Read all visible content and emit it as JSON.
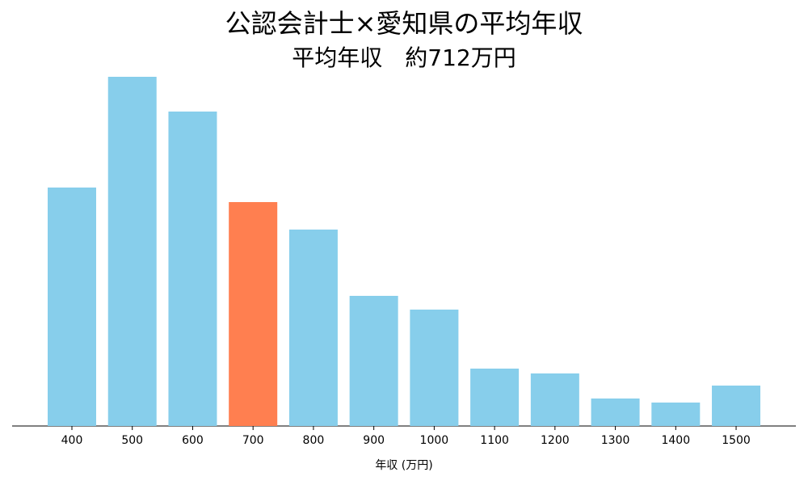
{
  "chart_data": {
    "type": "bar",
    "title": "公認会計士×愛知県の平均年収",
    "subtitle": "平均年収　約712万円",
    "x_label": "年収 (万円)",
    "categories": [
      "400",
      "500",
      "600",
      "700",
      "800",
      "900",
      "1000",
      "1100",
      "1200",
      "1300",
      "1400",
      "1500"
    ],
    "values": [
      295,
      432,
      389,
      277,
      243,
      161,
      144,
      71,
      65,
      34,
      29,
      50
    ],
    "colors": [
      "#87ceeb",
      "#87ceeb",
      "#87ceeb",
      "#ff7f50",
      "#87ceeb",
      "#87ceeb",
      "#87ceeb",
      "#87ceeb",
      "#87ceeb",
      "#87ceeb",
      "#87ceeb",
      "#87ceeb"
    ],
    "ylim": [
      0,
      450
    ]
  }
}
